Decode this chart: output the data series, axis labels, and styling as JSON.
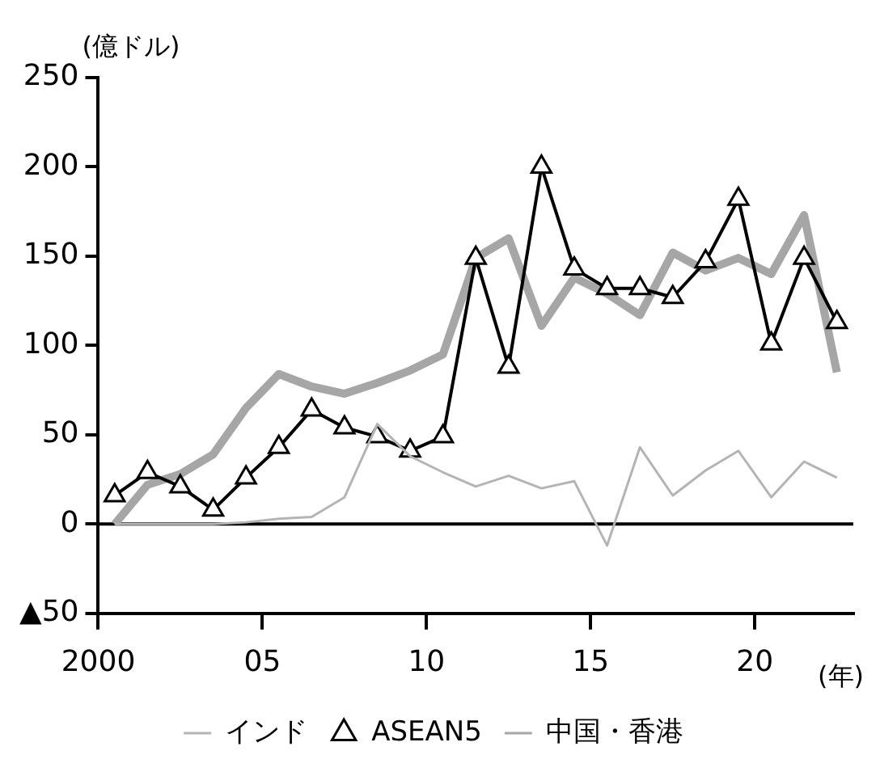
{
  "chart_data": {
    "type": "line",
    "ylabel": "(億ドル)",
    "xlabel": "(年)",
    "x": [
      2000.5,
      2001.5,
      2002.5,
      2003.5,
      2004.5,
      2005.5,
      2006.5,
      2007.5,
      2008.5,
      2009.5,
      2010.5,
      2011.5,
      2012.5,
      2013.5,
      2014.5,
      2015.5,
      2016.5,
      2017.5,
      2018.5,
      2019.5,
      2020.5,
      2021.5,
      2022.5
    ],
    "series": [
      {
        "name": "中国・香港",
        "color": "#a6a6a6",
        "marker": "none",
        "values": [
          0,
          22,
          28,
          39,
          65,
          84,
          77,
          73,
          79,
          86,
          95,
          149,
          160,
          111,
          138,
          129,
          117,
          152,
          142,
          149,
          140,
          173,
          85
        ]
      },
      {
        "name": "ASEAN5",
        "color": "#000000",
        "marker": "triangle",
        "values": [
          16,
          29,
          21,
          8,
          26,
          43,
          64,
          54,
          49,
          41,
          49,
          149,
          88,
          200,
          143,
          132,
          132,
          127,
          147,
          182,
          101,
          149,
          113
        ]
      },
      {
        "name": "インド",
        "color": "#b4b4b4",
        "marker": "none",
        "values": [
          0,
          0,
          0,
          0,
          1,
          3,
          4,
          15,
          56,
          38,
          29,
          21,
          27,
          20,
          24,
          -12,
          43,
          16,
          30,
          41,
          15,
          35,
          26
        ]
      }
    ],
    "xlim": [
      2000,
      2023
    ],
    "xticks": [
      {
        "value": 2000,
        "label": "2000"
      },
      {
        "value": 2005,
        "label": "05"
      },
      {
        "value": 2010,
        "label": "10"
      },
      {
        "value": 2015,
        "label": "15"
      },
      {
        "value": 2020,
        "label": "20"
      }
    ],
    "ylim": [
      -50,
      250
    ],
    "yticks": [
      {
        "value": -50,
        "label": "▲50"
      },
      0,
      50,
      100,
      150,
      200,
      250
    ],
    "ref_lines": [
      {
        "axis": "y",
        "value": 0,
        "color": "#000000"
      }
    ],
    "grid": false,
    "legend": "bottom",
    "line_style": "solid"
  }
}
